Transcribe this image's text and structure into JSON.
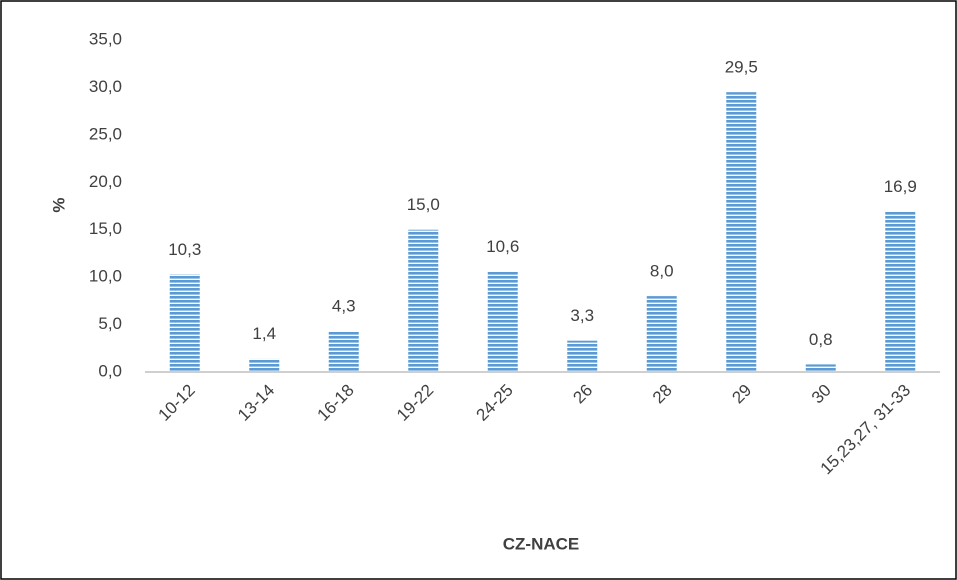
{
  "chart_data": {
    "type": "bar",
    "x_label": "CZ-NACE",
    "y_label": "%",
    "categories": [
      "10-12",
      "13-14",
      "16-18",
      "19-22",
      "24-25",
      "26",
      "28",
      "29",
      "30",
      "15,23,27, 31-33"
    ],
    "values": [
      10.3,
      1.4,
      4.3,
      15.0,
      10.6,
      3.3,
      8.0,
      29.5,
      0.8,
      16.9
    ],
    "value_labels": [
      "10,3",
      "1,4",
      "4,3",
      "15,0",
      "10,6",
      "3,3",
      "8,0",
      "29,5",
      "0,8",
      "16,9"
    ],
    "color": "#5b9bd5",
    "ylim": [
      0,
      35
    ],
    "yticks": [
      {
        "value": 0,
        "label": "0,0"
      },
      {
        "value": 5,
        "label": "5,0"
      },
      {
        "value": 10,
        "label": "10,0"
      },
      {
        "value": 15,
        "label": "15,0"
      },
      {
        "value": 20,
        "label": "20,0"
      },
      {
        "value": 25,
        "label": "25,0"
      },
      {
        "value": 30,
        "label": "30,0"
      },
      {
        "value": 35,
        "label": "35,0"
      }
    ],
    "grid": false
  }
}
